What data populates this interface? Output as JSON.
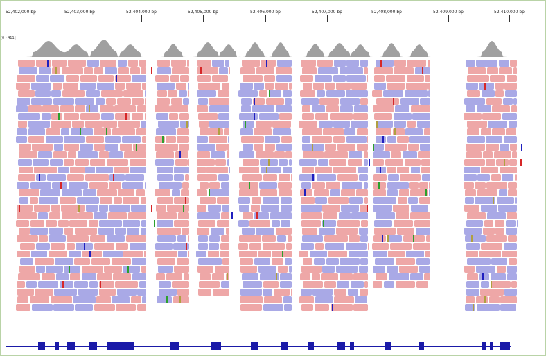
{
  "ruler": {
    "ticks": [
      "52,402,000 bp",
      "52,403,000 bp",
      "52,404,000 bp",
      "52,405,000 bp",
      "52,406,000 bp",
      "52,407,000 bp",
      "52,408,000 bp",
      "52,409,000 bp",
      "52,410,000 bp"
    ]
  },
  "coverage": {
    "range_label": "[0 - 411]",
    "fill_color": "#a0a0a0"
  },
  "reads": {
    "colors": {
      "forward": "#eea7a7",
      "reverse": "#a9a9e6",
      "mismatch": [
        "#2ca02c",
        "#d62728",
        "#1f1fbf",
        "#b0a040"
      ]
    }
  },
  "gene": {
    "color": "#1a1aa8"
  }
}
